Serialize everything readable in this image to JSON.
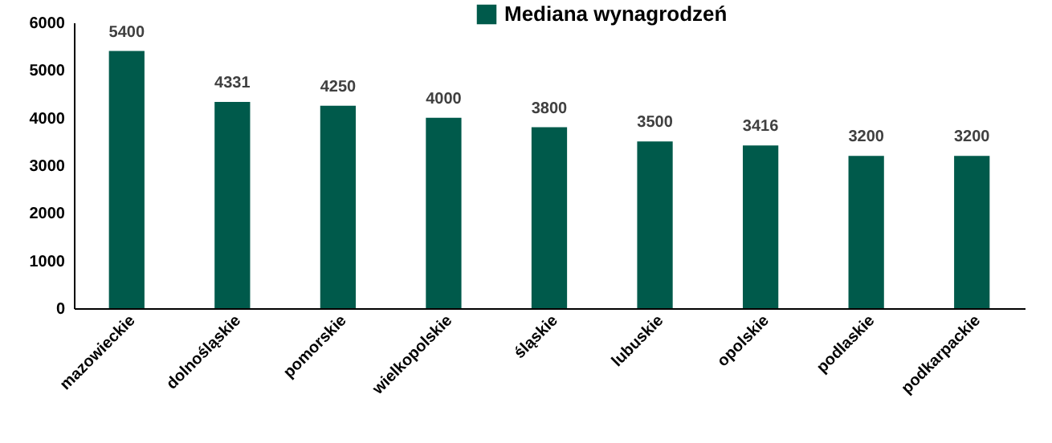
{
  "chart_data": {
    "type": "bar",
    "categories": [
      "mazowieckie",
      "dolnośląskie",
      "pomorskie",
      "wielkopolskie",
      "śląskie",
      "lubuskie",
      "opolskie",
      "podlaskie",
      "podkarpackie"
    ],
    "series": [
      {
        "name": "Mediana wynagrodzeń",
        "color": "#005a4b",
        "values": [
          5400,
          4331,
          4250,
          4000,
          3800,
          3500,
          3416,
          3200,
          3200
        ]
      }
    ],
    "ylim": [
      0,
      6000
    ],
    "yticks": [
      0,
      1000,
      2000,
      3000,
      4000,
      5000,
      6000
    ],
    "data_labels": true,
    "grid": false,
    "legend": "top"
  }
}
